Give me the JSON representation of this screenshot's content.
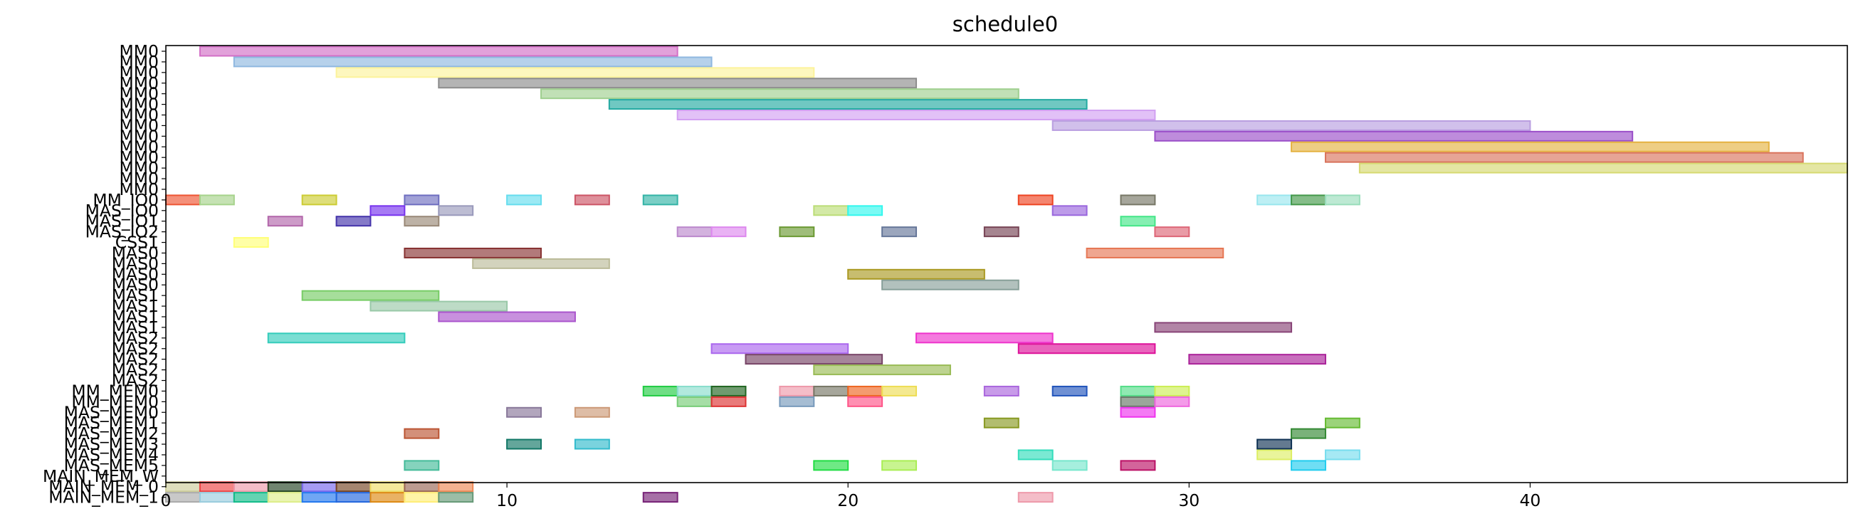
{
  "chart_data": {
    "type": "gantt",
    "title": "schedule0",
    "xlabel": "",
    "ylabel": "",
    "xlim": [
      0,
      49.3
    ],
    "xticks": [
      0,
      10,
      20,
      30,
      40
    ],
    "rows": [
      "MM0",
      "MM0",
      "MM0",
      "MM0",
      "MM0",
      "MM0",
      "MM0",
      "MM0",
      "MM0",
      "MM0",
      "MM0",
      "MM0",
      "MM0",
      "MM0",
      "MM_IO0",
      "MAS_IO0",
      "MAS_IO1",
      "MAS_IO2",
      "CSS1",
      "MAS0",
      "MAS0",
      "MAS0",
      "MAS0",
      "MAS1",
      "MAS1",
      "MAS1",
      "MAS1",
      "MAS2",
      "MAS2",
      "MAS2",
      "MAS2",
      "MAS2",
      "MM_MEM0",
      "MM_MEM0",
      "MAS_MEM0",
      "MAS_MEM1",
      "MAS_MEM2",
      "MAS_MEM3",
      "MAS_MEM4",
      "MAS_MEM5",
      "MAIN_MEM_W",
      "MAIN_MEM_0",
      "MAIN_MEM_1"
    ],
    "tasks": [
      {
        "row": 0,
        "start": 1,
        "end": 15,
        "color": "#d36fc6"
      },
      {
        "row": 1,
        "start": 2,
        "end": 16,
        "color": "#8fb8e0"
      },
      {
        "row": 2,
        "start": 5,
        "end": 19,
        "color": "#fcf39b"
      },
      {
        "row": 3,
        "start": 8,
        "end": 22,
        "color": "#8c8c8c"
      },
      {
        "row": 4,
        "start": 11,
        "end": 25,
        "color": "#9fcf8f"
      },
      {
        "row": 5,
        "start": 13,
        "end": 27,
        "color": "#24aaa2"
      },
      {
        "row": 6,
        "start": 15,
        "end": 29,
        "color": "#d2a0f2"
      },
      {
        "row": 7,
        "start": 26,
        "end": 40,
        "color": "#b99ee0"
      },
      {
        "row": 8,
        "start": 29,
        "end": 43,
        "color": "#9b4fc9"
      },
      {
        "row": 9,
        "start": 33,
        "end": 47,
        "color": "#e5b342"
      },
      {
        "row": 10,
        "start": 34,
        "end": 48,
        "color": "#d9735c"
      },
      {
        "row": 11,
        "start": 35,
        "end": 49.3,
        "color": "#d6d971"
      },
      {
        "row": 14,
        "start": 0,
        "end": 1,
        "color": "#ee5533"
      },
      {
        "row": 14,
        "start": 1,
        "end": 2,
        "color": "#a6d38b"
      },
      {
        "row": 14,
        "start": 4,
        "end": 5,
        "color": "#cccc33"
      },
      {
        "row": 14,
        "start": 7,
        "end": 8,
        "color": "#6e6ec0"
      },
      {
        "row": 14,
        "start": 10,
        "end": 11,
        "color": "#66ddee"
      },
      {
        "row": 14,
        "start": 12,
        "end": 13,
        "color": "#cc5566"
      },
      {
        "row": 14,
        "start": 14,
        "end": 15,
        "color": "#33b3a6"
      },
      {
        "row": 14,
        "start": 25,
        "end": 26,
        "color": "#ee4422"
      },
      {
        "row": 14,
        "start": 28,
        "end": 29,
        "color": "#777766"
      },
      {
        "row": 14,
        "start": 32,
        "end": 33,
        "color": "#99e6ee"
      },
      {
        "row": 14,
        "start": 33,
        "end": 34,
        "color": "#44994a"
      },
      {
        "row": 14,
        "start": 34,
        "end": 35,
        "color": "#99ddbb"
      },
      {
        "row": 15,
        "start": 6,
        "end": 7,
        "color": "#7733ee"
      },
      {
        "row": 15,
        "start": 8,
        "end": 9,
        "color": "#9999bb"
      },
      {
        "row": 15,
        "start": 19,
        "end": 20,
        "color": "#bbdd77"
      },
      {
        "row": 15,
        "start": 20,
        "end": 21,
        "color": "#33f7ee"
      },
      {
        "row": 15,
        "start": 26,
        "end": 27,
        "color": "#9966dd"
      },
      {
        "row": 16,
        "start": 3,
        "end": 4,
        "color": "#b266aa"
      },
      {
        "row": 16,
        "start": 5,
        "end": 6,
        "color": "#4433aa"
      },
      {
        "row": 16,
        "start": 7,
        "end": 8,
        "color": "#998877"
      },
      {
        "row": 16,
        "start": 28,
        "end": 29,
        "color": "#44e688"
      },
      {
        "row": 17,
        "start": 15,
        "end": 16,
        "color": "#bb88cc"
      },
      {
        "row": 17,
        "start": 16,
        "end": 17,
        "color": "#dd88ee"
      },
      {
        "row": 17,
        "start": 18,
        "end": 19,
        "color": "#6b9933"
      },
      {
        "row": 17,
        "start": 21,
        "end": 22,
        "color": "#667799"
      },
      {
        "row": 17,
        "start": 24,
        "end": 25,
        "color": "#774455"
      },
      {
        "row": 17,
        "start": 29,
        "end": 30,
        "color": "#dd6677"
      },
      {
        "row": 18,
        "start": 2,
        "end": 3,
        "color": "#ffff77"
      },
      {
        "row": 19,
        "start": 7,
        "end": 11,
        "color": "#883333"
      },
      {
        "row": 19,
        "start": 27,
        "end": 31,
        "color": "#e67755"
      },
      {
        "row": 20,
        "start": 9,
        "end": 13,
        "color": "#bbbb99"
      },
      {
        "row": 21,
        "start": 20,
        "end": 24,
        "color": "#aa9922"
      },
      {
        "row": 22,
        "start": 21,
        "end": 25,
        "color": "#88a099"
      },
      {
        "row": 23,
        "start": 4,
        "end": 8,
        "color": "#77cc66"
      },
      {
        "row": 24,
        "start": 6,
        "end": 10,
        "color": "#99c8a8"
      },
      {
        "row": 25,
        "start": 8,
        "end": 12,
        "color": "#aa55cc"
      },
      {
        "row": 26,
        "start": 29,
        "end": 33,
        "color": "#884477"
      },
      {
        "row": 27,
        "start": 3,
        "end": 7,
        "color": "#33ccbb"
      },
      {
        "row": 27,
        "start": 22,
        "end": 26,
        "color": "#ee33cc"
      },
      {
        "row": 28,
        "start": 16,
        "end": 20,
        "color": "#aa66ee"
      },
      {
        "row": 28,
        "start": 25,
        "end": 29,
        "color": "#dd1199"
      },
      {
        "row": 29,
        "start": 17,
        "end": 21,
        "color": "#774466"
      },
      {
        "row": 29,
        "start": 30,
        "end": 34,
        "color": "#aa2299"
      },
      {
        "row": 30,
        "start": 19,
        "end": 23,
        "color": "#99bb55"
      },
      {
        "row": 32,
        "start": 14,
        "end": 15,
        "color": "#22cc44"
      },
      {
        "row": 32,
        "start": 15,
        "end": 16,
        "color": "#88ddcc"
      },
      {
        "row": 32,
        "start": 16,
        "end": 17,
        "color": "#226622"
      },
      {
        "row": 32,
        "start": 18,
        "end": 19,
        "color": "#ee99aa"
      },
      {
        "row": 32,
        "start": 19,
        "end": 20,
        "color": "#777766"
      },
      {
        "row": 32,
        "start": 20,
        "end": 21,
        "color": "#ee6622"
      },
      {
        "row": 32,
        "start": 21,
        "end": 22,
        "color": "#eedd55"
      },
      {
        "row": 32,
        "start": 24,
        "end": 25,
        "color": "#aa66dd"
      },
      {
        "row": 32,
        "start": 26,
        "end": 27,
        "color": "#2255bb"
      },
      {
        "row": 32,
        "start": 28,
        "end": 29,
        "color": "#55dd88"
      },
      {
        "row": 32,
        "start": 29,
        "end": 30,
        "color": "#ccee55"
      },
      {
        "row": 33,
        "start": 15,
        "end": 16,
        "color": "#77cc77"
      },
      {
        "row": 33,
        "start": 16,
        "end": 17,
        "color": "#dd3333"
      },
      {
        "row": 33,
        "start": 18,
        "end": 19,
        "color": "#7799bb"
      },
      {
        "row": 33,
        "start": 20,
        "end": 21,
        "color": "#ff5588"
      },
      {
        "row": 33,
        "start": 28,
        "end": 29,
        "color": "#667766"
      },
      {
        "row": 33,
        "start": 29,
        "end": 30,
        "color": "#ee66dd"
      },
      {
        "row": 34,
        "start": 10,
        "end": 11,
        "color": "#887799"
      },
      {
        "row": 34,
        "start": 12,
        "end": 13,
        "color": "#cc9977"
      },
      {
        "row": 34,
        "start": 28,
        "end": 29,
        "color": "#ee33ee"
      },
      {
        "row": 35,
        "start": 24,
        "end": 25,
        "color": "#889922"
      },
      {
        "row": 35,
        "start": 34,
        "end": 35,
        "color": "#66bb33"
      },
      {
        "row": 36,
        "start": 7,
        "end": 8,
        "color": "#bb5533"
      },
      {
        "row": 36,
        "start": 33,
        "end": 34,
        "color": "#338833"
      },
      {
        "row": 37,
        "start": 10,
        "end": 11,
        "color": "#117766"
      },
      {
        "row": 37,
        "start": 12,
        "end": 13,
        "color": "#33bbcc"
      },
      {
        "row": 37,
        "start": 32,
        "end": 33,
        "color": "#113355"
      },
      {
        "row": 38,
        "start": 25,
        "end": 26,
        "color": "#33ddbb"
      },
      {
        "row": 38,
        "start": 32,
        "end": 33,
        "color": "#ddee66"
      },
      {
        "row": 38,
        "start": 34,
        "end": 35,
        "color": "#77ddee"
      },
      {
        "row": 39,
        "start": 7,
        "end": 8,
        "color": "#44bb99"
      },
      {
        "row": 39,
        "start": 19,
        "end": 20,
        "color": "#22dd44"
      },
      {
        "row": 39,
        "start": 21,
        "end": 22,
        "color": "#aaee55"
      },
      {
        "row": 39,
        "start": 26,
        "end": 27,
        "color": "#77e6cc"
      },
      {
        "row": 39,
        "start": 28,
        "end": 29,
        "color": "#bb1166"
      },
      {
        "row": 39,
        "start": 33,
        "end": 34,
        "color": "#22ccee"
      },
      {
        "row": 41,
        "start": 0,
        "end": 1,
        "color": "#cccc99"
      },
      {
        "row": 41,
        "start": 1,
        "end": 2,
        "color": "#ee4444"
      },
      {
        "row": 41,
        "start": 2,
        "end": 3,
        "color": "#ee99aa"
      },
      {
        "row": 41,
        "start": 3,
        "end": 4,
        "color": "#224422"
      },
      {
        "row": 41,
        "start": 4,
        "end": 5,
        "color": "#7766ee"
      },
      {
        "row": 41,
        "start": 5,
        "end": 6,
        "color": "#774422"
      },
      {
        "row": 41,
        "start": 6,
        "end": 7,
        "color": "#eedd66"
      },
      {
        "row": 41,
        "start": 7,
        "end": 8,
        "color": "#996655"
      },
      {
        "row": 41,
        "start": 8,
        "end": 9,
        "color": "#ee8855"
      },
      {
        "row": 42,
        "start": 0,
        "end": 1,
        "color": "#aaaaaa"
      },
      {
        "row": 42,
        "start": 1,
        "end": 2,
        "color": "#99ccdd"
      },
      {
        "row": 42,
        "start": 2,
        "end": 3,
        "color": "#11bb88"
      },
      {
        "row": 42,
        "start": 3,
        "end": 4,
        "color": "#ddee88"
      },
      {
        "row": 42,
        "start": 4,
        "end": 5,
        "color": "#2277ee"
      },
      {
        "row": 42,
        "start": 5,
        "end": 6,
        "color": "#2266dd"
      },
      {
        "row": 42,
        "start": 6,
        "end": 7,
        "color": "#dd8811"
      },
      {
        "row": 42,
        "start": 7,
        "end": 8,
        "color": "#ffee77"
      },
      {
        "row": 42,
        "start": 8,
        "end": 9,
        "color": "#669977"
      },
      {
        "row": 42,
        "start": 14,
        "end": 15,
        "color": "#772277"
      },
      {
        "row": 42,
        "start": 25,
        "end": 26,
        "color": "#ee99aa"
      }
    ]
  }
}
